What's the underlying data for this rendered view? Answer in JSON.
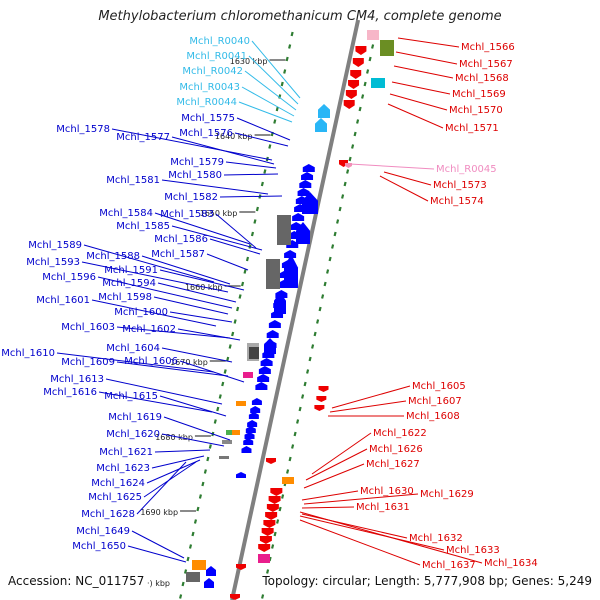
{
  "title": "Methylobacterium chloromethanicum CM4, complete genome",
  "footer": {
    "accession": "Accession: NC_011757",
    "topology": "Topology: circular; Length: 5,777,908 bp; Genes: 5,249",
    "partial_tick": "·) kbp"
  },
  "colors": {
    "left_labels": "#0000cc",
    "rna_labels": "#33bbe8",
    "right_labels": "#dd0000",
    "pseudo_label": "#f08cc0",
    "backbone": "#808080",
    "tick": "#2e7d32"
  },
  "kbp_ticks": [
    "1630 kbp",
    "1640 kbp",
    "1650 kbp",
    "1660 kbp",
    "1670 kbp",
    "1680 kbp",
    "1690 kbp"
  ],
  "left_genes": [
    {
      "label": "Mchl_R0040",
      "kind": "rna"
    },
    {
      "label": "Mchl_R0041",
      "kind": "rna"
    },
    {
      "label": "Mchl_R0042",
      "kind": "rna"
    },
    {
      "label": "Mchl_R0043",
      "kind": "rna"
    },
    {
      "label": "Mchl_R0044",
      "kind": "rna"
    },
    {
      "label": "Mchl_1575",
      "kind": "cds"
    },
    {
      "label": "Mchl_1576",
      "kind": "cds"
    },
    {
      "label": "Mchl_1578",
      "kind": "cds"
    },
    {
      "label": "Mchl_1577",
      "kind": "cds"
    },
    {
      "label": "Mchl_1579",
      "kind": "cds"
    },
    {
      "label": "Mchl_1580",
      "kind": "cds"
    },
    {
      "label": "Mchl_1581",
      "kind": "cds"
    },
    {
      "label": "Mchl_1582",
      "kind": "cds"
    },
    {
      "label": "Mchl_1584",
      "kind": "cds"
    },
    {
      "label": "Mchl_1583",
      "kind": "cds"
    },
    {
      "label": "Mchl_1585",
      "kind": "cds"
    },
    {
      "label": "Mchl_1586",
      "kind": "cds"
    },
    {
      "label": "Mchl_1589",
      "kind": "cds"
    },
    {
      "label": "Mchl_1588",
      "kind": "cds"
    },
    {
      "label": "Mchl_1587",
      "kind": "cds"
    },
    {
      "label": "Mchl_1593",
      "kind": "cds"
    },
    {
      "label": "Mchl_1591",
      "kind": "cds"
    },
    {
      "label": "Mchl_1596",
      "kind": "cds"
    },
    {
      "label": "Mchl_1594",
      "kind": "cds"
    },
    {
      "label": "Mchl_1598",
      "kind": "cds"
    },
    {
      "label": "Mchl_1601",
      "kind": "cds"
    },
    {
      "label": "Mchl_1600",
      "kind": "cds"
    },
    {
      "label": "Mchl_1603",
      "kind": "cds"
    },
    {
      "label": "Mchl_1602",
      "kind": "cds"
    },
    {
      "label": "Mchl_1604",
      "kind": "cds"
    },
    {
      "label": "Mchl_1610",
      "kind": "cds"
    },
    {
      "label": "Mchl_1609",
      "kind": "cds"
    },
    {
      "label": "Mchl_1606",
      "kind": "cds"
    },
    {
      "label": "Mchl_1613",
      "kind": "cds"
    },
    {
      "label": "Mchl_1616",
      "kind": "cds"
    },
    {
      "label": "Mchl_1615",
      "kind": "cds"
    },
    {
      "label": "Mchl_1619",
      "kind": "cds"
    },
    {
      "label": "Mchl_1620",
      "kind": "cds"
    },
    {
      "label": "Mchl_1621",
      "kind": "cds"
    },
    {
      "label": "Mchl_1623",
      "kind": "cds"
    },
    {
      "label": "Mchl_1624",
      "kind": "cds"
    },
    {
      "label": "Mchl_1625",
      "kind": "cds"
    },
    {
      "label": "Mchl_1628",
      "kind": "cds"
    },
    {
      "label": "Mchl_1649",
      "kind": "cds"
    },
    {
      "label": "Mchl_1650",
      "kind": "cds"
    }
  ],
  "right_genes": [
    {
      "label": "Mchl_1566",
      "kind": "cds"
    },
    {
      "label": "Mchl_1567",
      "kind": "cds"
    },
    {
      "label": "Mchl_1568",
      "kind": "cds"
    },
    {
      "label": "Mchl_1569",
      "kind": "cds"
    },
    {
      "label": "Mchl_1570",
      "kind": "cds"
    },
    {
      "label": "Mchl_1571",
      "kind": "cds"
    },
    {
      "label": "Mchl_R0045",
      "kind": "pseudo"
    },
    {
      "label": "Mchl_1573",
      "kind": "cds"
    },
    {
      "label": "Mchl_1574",
      "kind": "cds"
    },
    {
      "label": "Mchl_1605",
      "kind": "cds"
    },
    {
      "label": "Mchl_1607",
      "kind": "cds"
    },
    {
      "label": "Mchl_1608",
      "kind": "cds"
    },
    {
      "label": "Mchl_1622",
      "kind": "cds"
    },
    {
      "label": "Mchl_1626",
      "kind": "cds"
    },
    {
      "label": "Mchl_1627",
      "kind": "cds"
    },
    {
      "label": "Mchl_1630",
      "kind": "cds"
    },
    {
      "label": "Mchl_1629",
      "kind": "cds"
    },
    {
      "label": "Mchl_1631",
      "kind": "cds"
    },
    {
      "label": "Mchl_1632",
      "kind": "cds"
    },
    {
      "label": "Mchl_1633",
      "kind": "cds"
    },
    {
      "label": "Mchl_1637",
      "kind": "cds"
    },
    {
      "label": "Mchl_1634",
      "kind": "cds"
    }
  ]
}
